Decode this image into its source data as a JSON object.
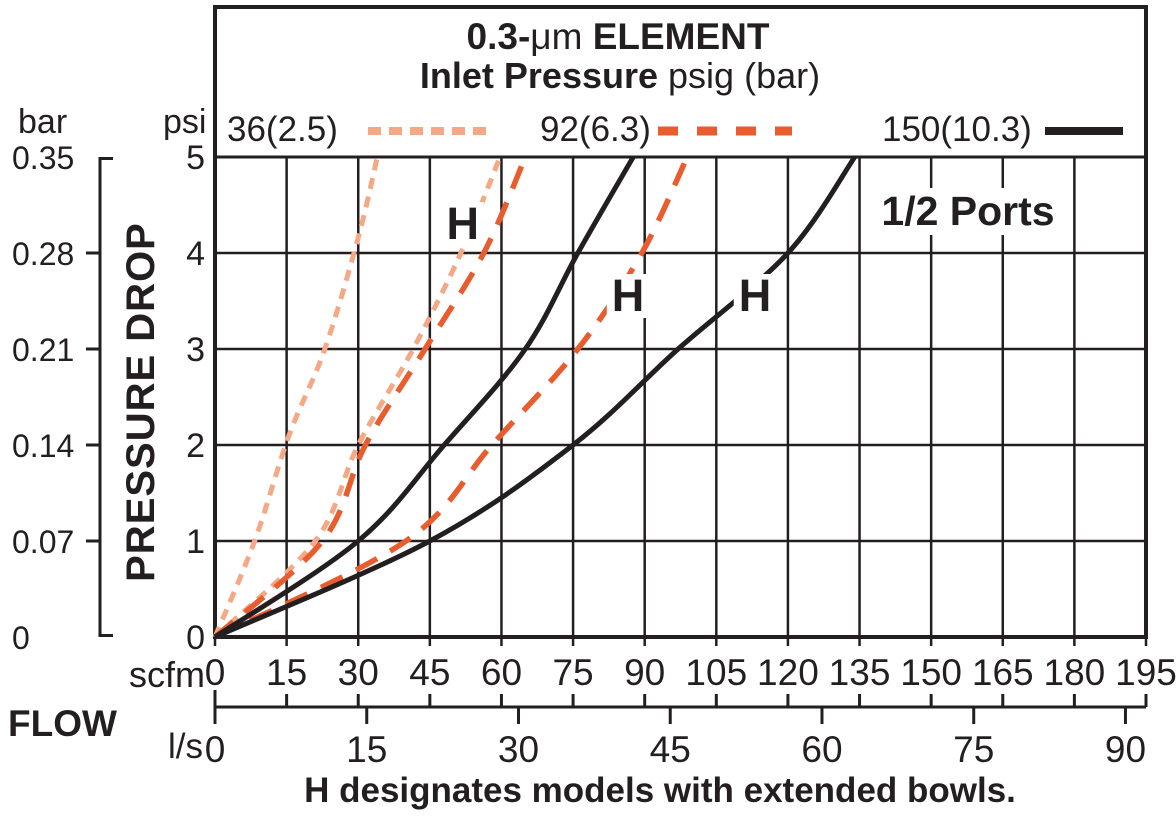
{
  "title": {
    "line1_bold": "0.3-",
    "line1_unit": "μm",
    "line1_rest": " ELEMENT",
    "line2_bold": "Inlet Pressure",
    "line2_rest": " psig (bar)"
  },
  "ports_label": "1/2 Ports",
  "caption": "H designates models with extended bowls.",
  "axes": {
    "left_outer_unit": "bar",
    "left_inner_unit": "psi",
    "left_title": "PRESSURE DROP",
    "bottom_title": "FLOW",
    "bottom_upper_unit": "scfm",
    "bottom_lower_unit": "l/s",
    "psi_ticks": [
      "0",
      "1",
      "2",
      "3",
      "4",
      "5"
    ],
    "bar_ticks": [
      "0",
      "0.07",
      "0.14",
      "0.21",
      "0.28",
      "0.35"
    ],
    "scfm_ticks": [
      "0",
      "15",
      "30",
      "45",
      "60",
      "75",
      "90",
      "105",
      "120",
      "135",
      "150",
      "165",
      "180",
      "195"
    ],
    "ls_ticks": [
      "0",
      "15",
      "30",
      "45",
      "60",
      "75",
      "90"
    ]
  },
  "legend": [
    {
      "label": "36(2.5)"
    },
    {
      "label": "92(6.3)"
    },
    {
      "label": "150(10.3)"
    }
  ],
  "chart_data": {
    "type": "line",
    "title": "0.3-μm ELEMENT — Inlet Pressure psig (bar)",
    "xlabel": "FLOW, scfm (l/s)",
    "ylabel": "PRESSURE DROP, psi (bar)",
    "x_range_scfm": [
      0,
      195
    ],
    "x_range_ls": [
      0,
      92
    ],
    "y_range_psi": [
      0,
      5
    ],
    "y_range_bar": [
      0,
      0.35
    ],
    "grid": true,
    "legend_position": "top",
    "series": [
      {
        "name": "36(2.5)",
        "model": "standard",
        "color": "#F5A886",
        "dash": [
          11,
          8
        ],
        "width": 5,
        "points_scfm_psi": [
          [
            0,
            0
          ],
          [
            8.3,
            1
          ],
          [
            15.5,
            2.1
          ],
          [
            23,
            3
          ],
          [
            30,
            4.16
          ],
          [
            34,
            5
          ]
        ]
      },
      {
        "name": "36(2.5)",
        "model": "H",
        "color": "#F5A886",
        "dash": [
          11,
          8
        ],
        "width": 5,
        "points_scfm_psi": [
          [
            0,
            0
          ],
          [
            21,
            1
          ],
          [
            30,
            2
          ],
          [
            41.5,
            3
          ],
          [
            51.5,
            4
          ],
          [
            59.7,
            5
          ]
        ]
      },
      {
        "name": "92(6.3)",
        "model": "standard",
        "color": "#E95C2E",
        "dash": [
          24,
          15
        ],
        "width": 5.5,
        "points_scfm_psi": [
          [
            0,
            0
          ],
          [
            22.5,
            1
          ],
          [
            31.5,
            2
          ],
          [
            44,
            3
          ],
          [
            56.3,
            4
          ],
          [
            65,
            5
          ]
        ]
      },
      {
        "name": "92(6.3)",
        "model": "H",
        "color": "#E95C2E",
        "dash": [
          24,
          15
        ],
        "width": 5.5,
        "points_scfm_psi": [
          [
            0,
            0
          ],
          [
            40,
            1
          ],
          [
            58,
            2
          ],
          [
            76,
            3
          ],
          [
            89.4,
            4
          ],
          [
            98.9,
            5
          ]
        ]
      },
      {
        "name": "150(10.3)",
        "model": "standard",
        "color": "#231F20",
        "dash": [],
        "width": 5,
        "points_scfm_psi": [
          [
            0,
            0
          ],
          [
            30,
            1
          ],
          [
            48,
            2
          ],
          [
            65,
            3
          ],
          [
            76,
            4
          ],
          [
            87.6,
            5
          ]
        ]
      },
      {
        "name": "150(10.3)",
        "model": "H",
        "color": "#231F20",
        "dash": [],
        "width": 5,
        "points_scfm_psi": [
          [
            0,
            0
          ],
          [
            45,
            1
          ],
          [
            75,
            2
          ],
          [
            97,
            3
          ],
          [
            120,
            4
          ],
          [
            134,
            5
          ]
        ]
      }
    ],
    "annotations": [
      {
        "text": "H",
        "scfm": 51.9,
        "psi": 4.3
      },
      {
        "text": "H",
        "scfm": 86.5,
        "psi": 3.55
      },
      {
        "text": "H",
        "scfm": 113.1,
        "psi": 3.55
      }
    ]
  }
}
